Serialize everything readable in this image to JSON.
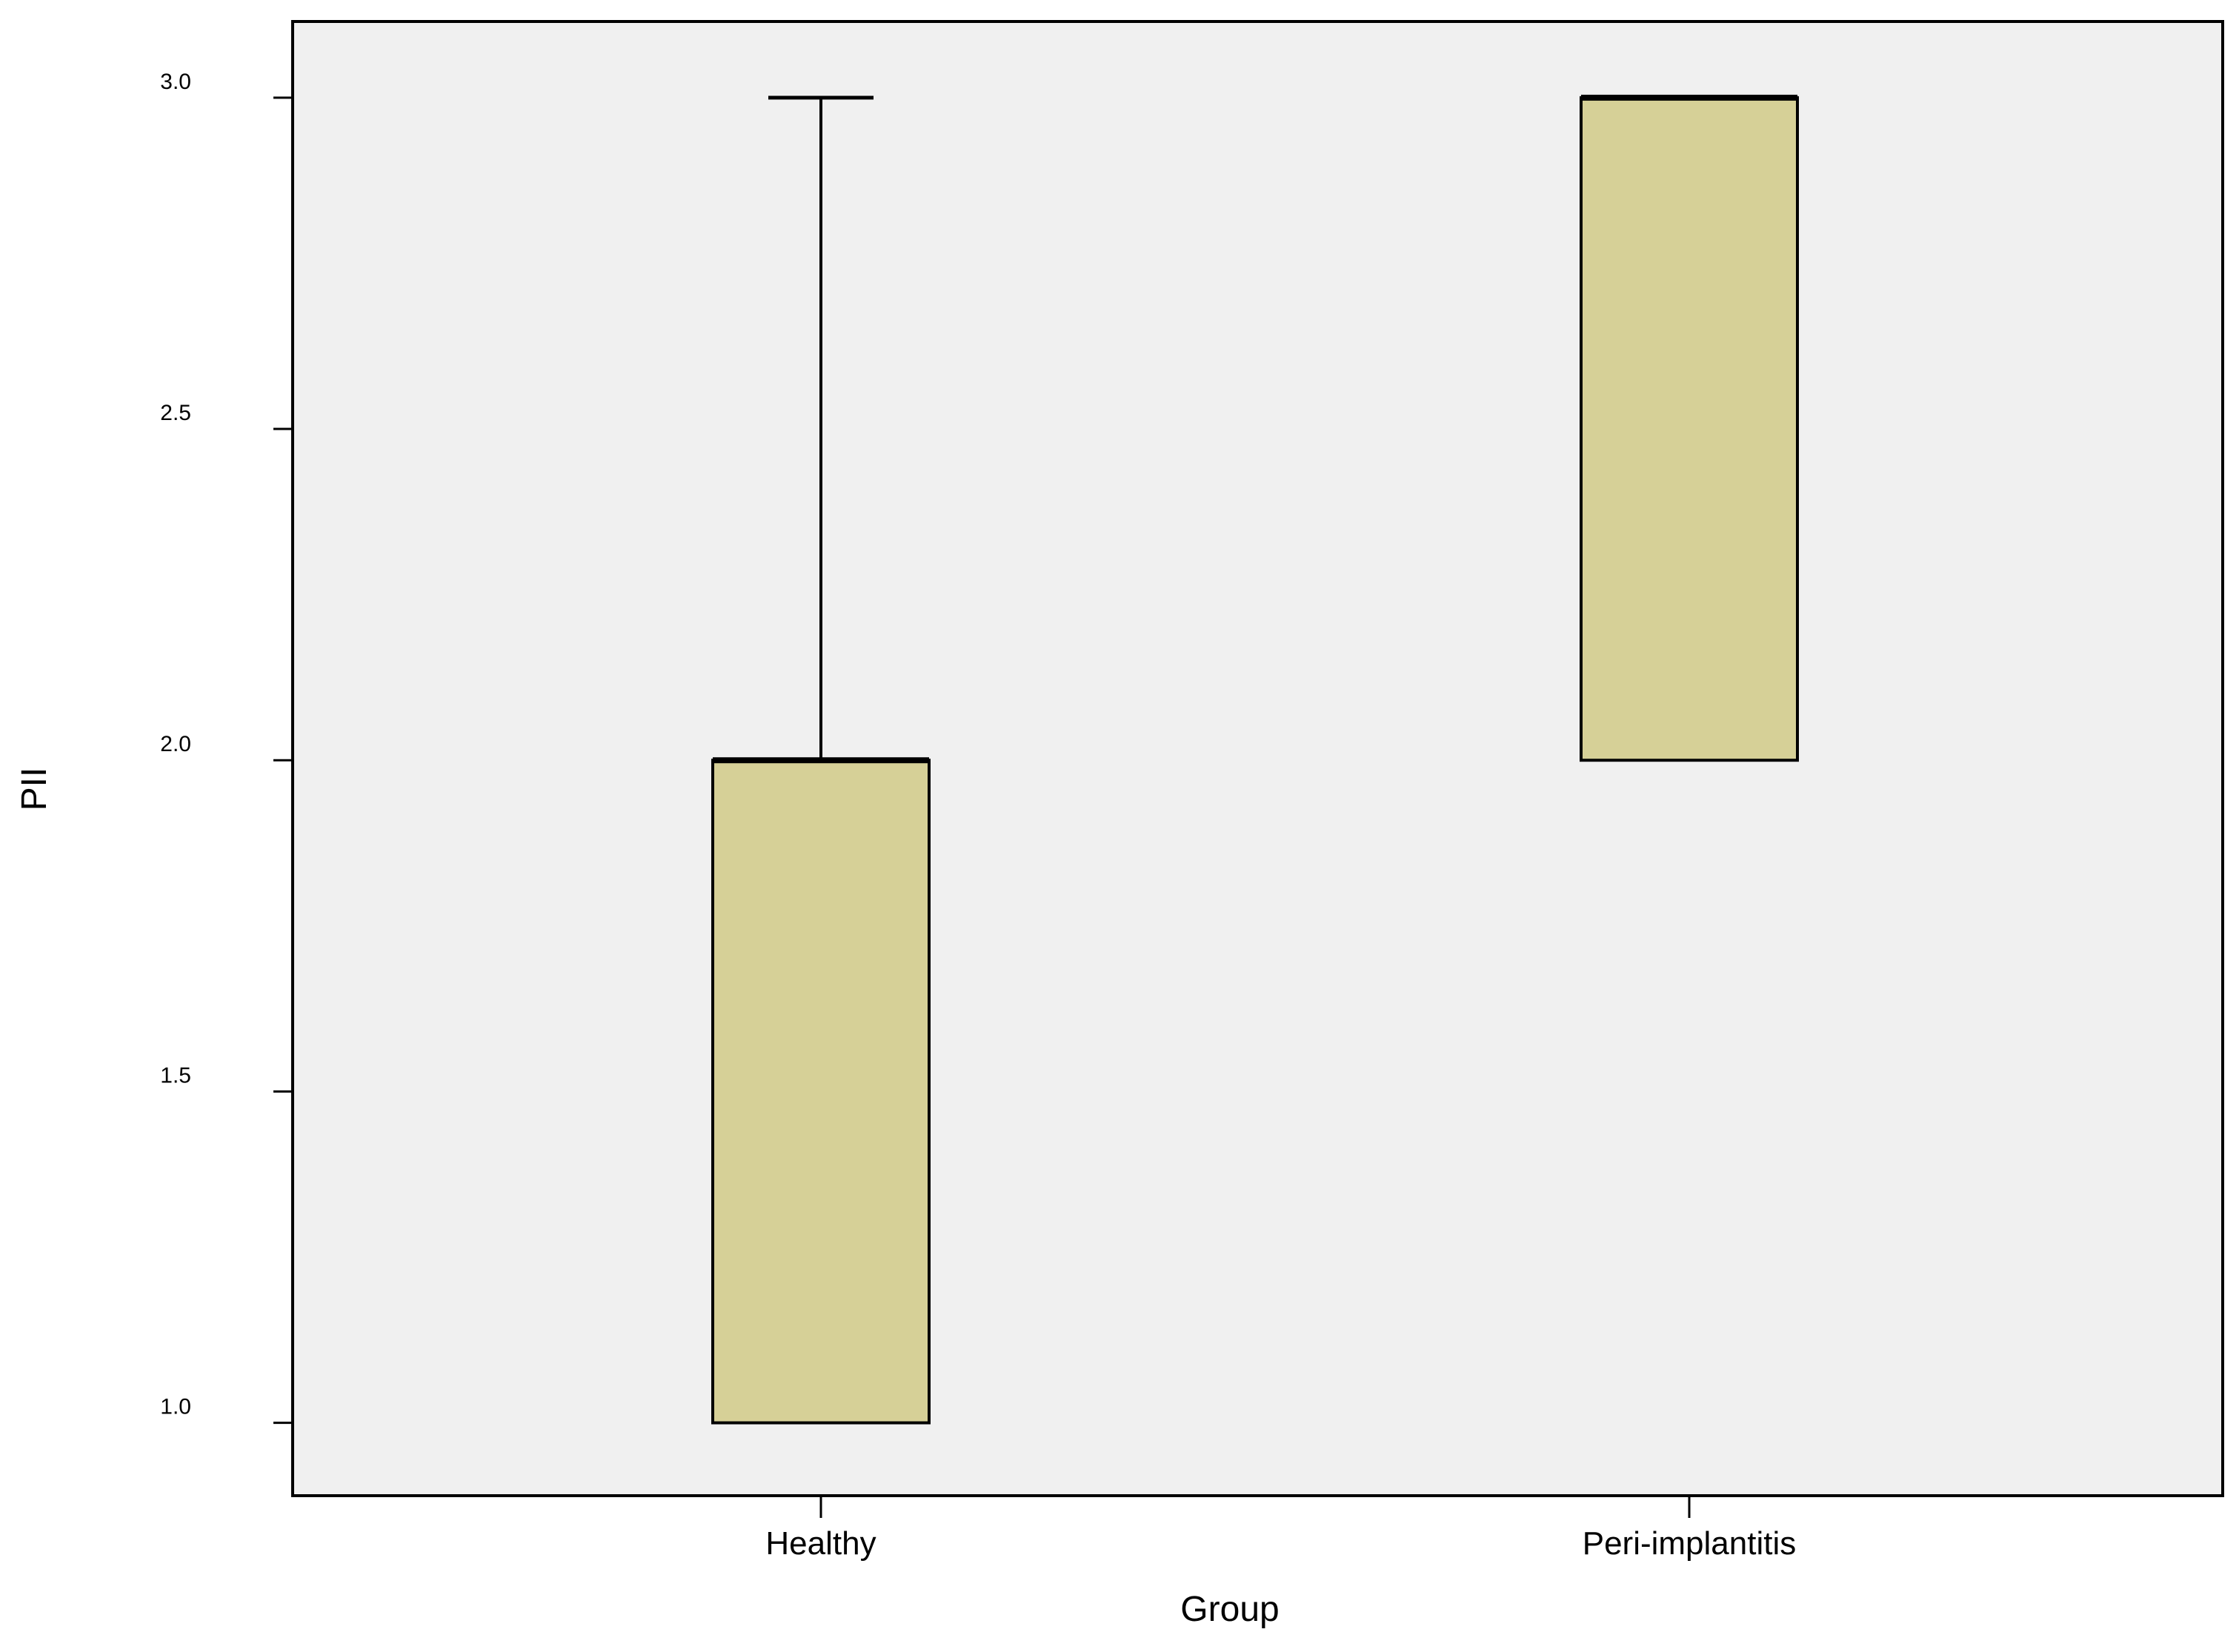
{
  "chart_data": {
    "type": "box",
    "xlabel": "Group",
    "ylabel": "PII",
    "ylim": [
      0.89,
      3.115
    ],
    "y_ticks": [
      1.0,
      1.5,
      2.0,
      2.5,
      3.0
    ],
    "y_tick_labels": [
      "1.0",
      "1.5",
      "2.0",
      "2.5",
      "3.0"
    ],
    "categories": [
      "Healthy",
      "Peri-implantitis"
    ],
    "boxes": [
      {
        "category": "Healthy",
        "min": 1.0,
        "q1": 1.0,
        "median": 2.0,
        "q3": 2.0,
        "max": 3.0
      },
      {
        "category": "Peri-implantitis",
        "min": 2.0,
        "q1": 2.0,
        "median": 3.0,
        "q3": 3.0,
        "max": 3.0
      }
    ],
    "grid": false,
    "colors": {
      "plot_background": "#f0f0f0",
      "box_fill": "#d6d097",
      "stroke": "#000000"
    }
  }
}
